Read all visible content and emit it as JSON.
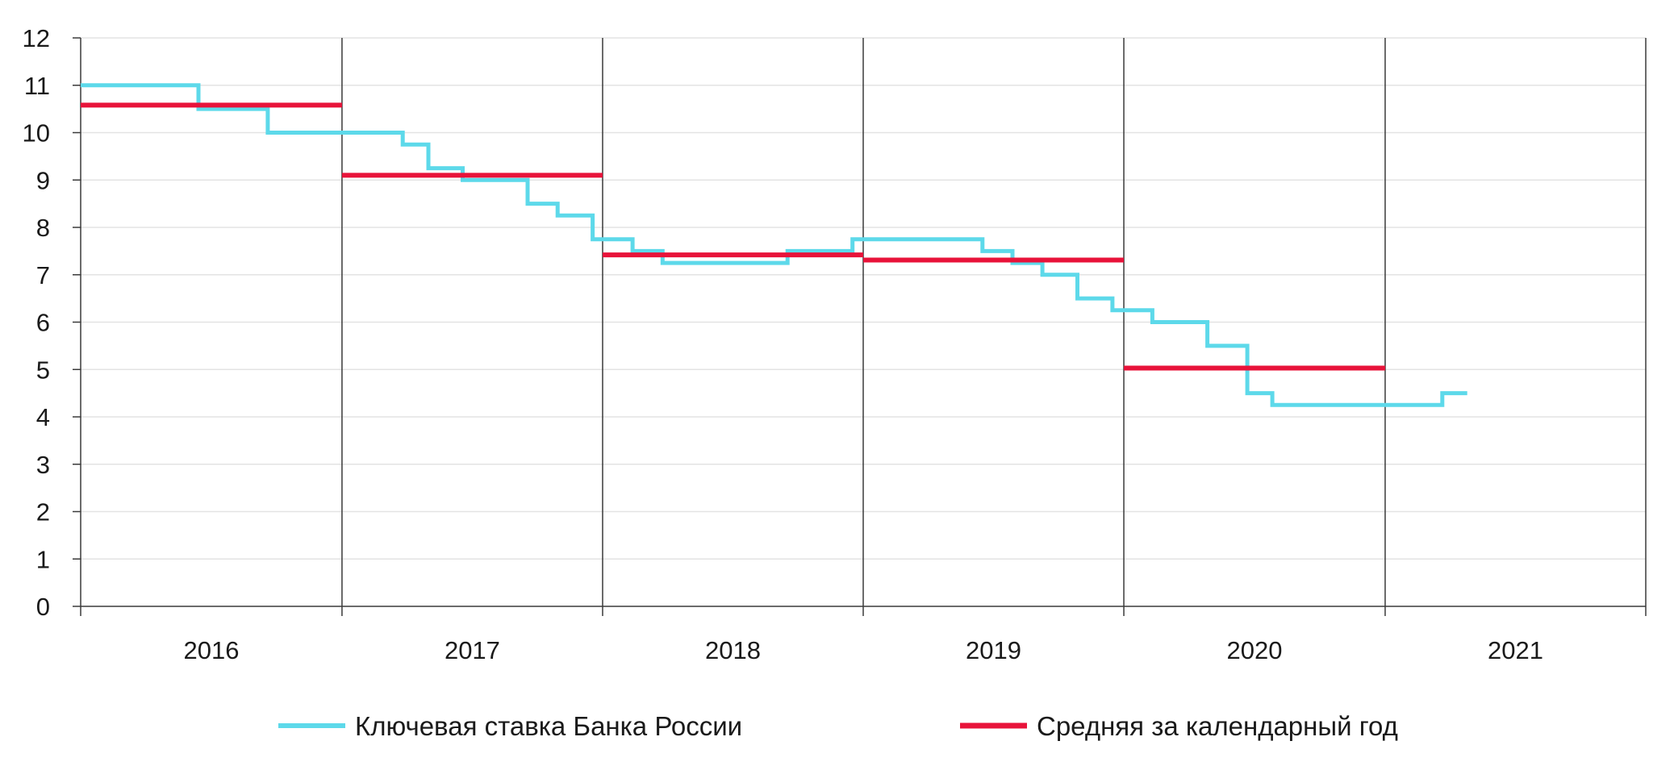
{
  "chart_data": {
    "type": "line",
    "title": "",
    "xlabel": "",
    "ylabel": "",
    "ylim": [
      0,
      12
    ],
    "y_ticks": [
      "0",
      "1",
      "2",
      "3",
      "4",
      "5",
      "6",
      "7",
      "8",
      "9",
      "10",
      "11",
      "12"
    ],
    "x_range": [
      "2016-01-01",
      "2022-01-01"
    ],
    "x_ticks": [
      "2016",
      "2017",
      "2018",
      "2019",
      "2020",
      "2021"
    ],
    "grid": {
      "horizontal": true,
      "year_separators": true
    },
    "legend_position": "bottom",
    "series": [
      {
        "name": "Ключевая ставка Банка России",
        "color": "#5dd9ea",
        "step": true,
        "points": [
          {
            "date": "2016-01-01",
            "value": 11.0
          },
          {
            "date": "2016-06-14",
            "value": 10.5
          },
          {
            "date": "2016-09-19",
            "value": 10.0
          },
          {
            "date": "2017-03-27",
            "value": 9.75
          },
          {
            "date": "2017-05-02",
            "value": 9.25
          },
          {
            "date": "2017-06-19",
            "value": 9.0
          },
          {
            "date": "2017-09-18",
            "value": 8.5
          },
          {
            "date": "2017-10-30",
            "value": 8.25
          },
          {
            "date": "2017-12-18",
            "value": 7.75
          },
          {
            "date": "2018-02-12",
            "value": 7.5
          },
          {
            "date": "2018-03-26",
            "value": 7.25
          },
          {
            "date": "2018-09-17",
            "value": 7.5
          },
          {
            "date": "2018-12-17",
            "value": 7.75
          },
          {
            "date": "2019-06-17",
            "value": 7.5
          },
          {
            "date": "2019-07-29",
            "value": 7.25
          },
          {
            "date": "2019-09-09",
            "value": 7.0
          },
          {
            "date": "2019-10-28",
            "value": 6.5
          },
          {
            "date": "2019-12-16",
            "value": 6.25
          },
          {
            "date": "2020-02-10",
            "value": 6.0
          },
          {
            "date": "2020-04-27",
            "value": 5.5
          },
          {
            "date": "2020-06-22",
            "value": 4.5
          },
          {
            "date": "2020-07-27",
            "value": 4.25
          },
          {
            "date": "2021-03-22",
            "value": 4.5
          },
          {
            "date": "2021-04-26",
            "value": 4.5
          }
        ]
      },
      {
        "name": "Средняя за календарный год",
        "color": "#e8133a",
        "segments": [
          {
            "from": "2016-01-01",
            "to": "2017-01-01",
            "value": 10.58
          },
          {
            "from": "2017-01-01",
            "to": "2018-01-01",
            "value": 9.1
          },
          {
            "from": "2018-01-01",
            "to": "2019-01-01",
            "value": 7.42
          },
          {
            "from": "2019-01-01",
            "to": "2020-01-01",
            "value": 7.31
          },
          {
            "from": "2020-01-01",
            "to": "2021-01-01",
            "value": 5.03
          }
        ]
      }
    ]
  }
}
